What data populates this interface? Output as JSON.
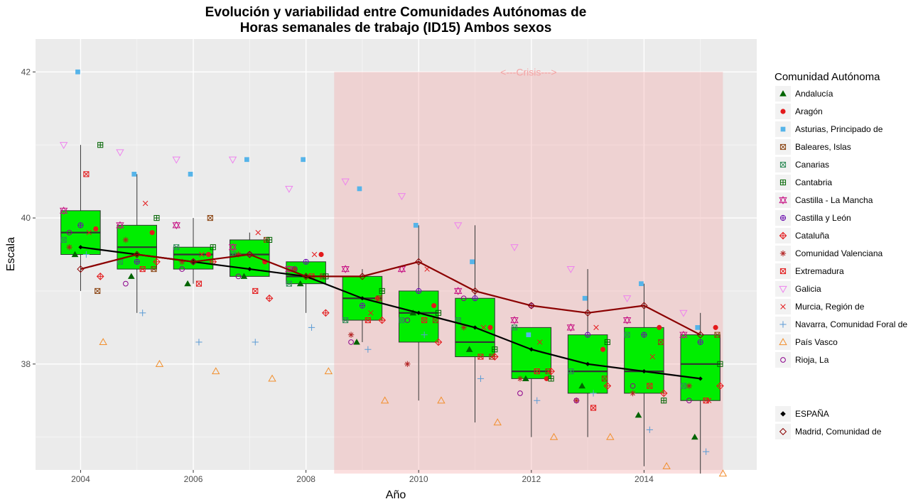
{
  "chart_data": {
    "type": "box",
    "title_line1": "Evolución y variabilidad entre Comunidades Autónomas de",
    "title_line2": "Horas semanales de trabajo (ID15) Ambos sexos",
    "xlabel": "Año",
    "ylabel": "Escala",
    "xlim": [
      2003.2,
      2016.0
    ],
    "ylim": [
      36.55,
      42.45
    ],
    "x_ticks": [
      2004,
      2006,
      2008,
      2010,
      2012,
      2014
    ],
    "x_tick_labels": [
      "2004",
      "2006",
      "2008",
      "2010",
      "2012",
      "2014"
    ],
    "y_ticks": [
      38,
      40,
      42
    ],
    "y_tick_labels": [
      "38",
      "40",
      "42"
    ],
    "grid": true,
    "crisis": {
      "label": "<---Crisis--->",
      "x_start": 2008.5,
      "x_end": 2015.4,
      "y_low": 36.5,
      "y_high": 42.0,
      "color": "#f4a3a3"
    },
    "box_color": "#00ee00",
    "boxes": [
      {
        "year": 2004,
        "min": 39.0,
        "q1": 39.5,
        "median": 39.8,
        "q3": 40.1,
        "max": 41.0
      },
      {
        "year": 2005,
        "min": 38.7,
        "q1": 39.3,
        "median": 39.6,
        "q3": 39.9,
        "max": 40.6
      },
      {
        "year": 2006,
        "min": 39.1,
        "q1": 39.3,
        "median": 39.5,
        "q3": 39.6,
        "max": 40.0
      },
      {
        "year": 2007,
        "min": 39.2,
        "q1": 39.2,
        "median": 39.5,
        "q3": 39.7,
        "max": 39.8
      },
      {
        "year": 2008,
        "min": 38.7,
        "q1": 39.1,
        "median": 39.2,
        "q3": 39.4,
        "max": 39.4
      },
      {
        "year": 2009,
        "min": 38.3,
        "q1": 38.6,
        "median": 38.9,
        "q3": 39.2,
        "max": 39.3
      },
      {
        "year": 2010,
        "min": 37.5,
        "q1": 38.3,
        "median": 38.7,
        "q3": 39.0,
        "max": 39.9
      },
      {
        "year": 2011,
        "min": 37.2,
        "q1": 38.1,
        "median": 38.3,
        "q3": 38.9,
        "max": 39.9
      },
      {
        "year": 2012,
        "min": 37.0,
        "q1": 37.8,
        "median": 37.9,
        "q3": 38.5,
        "max": 38.5
      },
      {
        "year": 2013,
        "min": 37.0,
        "q1": 37.6,
        "median": 37.9,
        "q3": 38.4,
        "max": 39.3
      },
      {
        "year": 2014,
        "min": 36.6,
        "q1": 37.6,
        "median": 37.9,
        "q3": 38.5,
        "max": 39.1
      },
      {
        "year": 2015,
        "min": 36.5,
        "q1": 37.5,
        "median": 38.0,
        "q3": 38.4,
        "max": 38.7
      }
    ],
    "lines": [
      {
        "name": "ESPAÑA",
        "color": "#000000",
        "x": [
          2004,
          2005,
          2006,
          2007,
          2008,
          2009,
          2010,
          2011,
          2012,
          2013,
          2014,
          2015
        ],
        "y": [
          39.6,
          39.5,
          39.4,
          39.3,
          39.2,
          38.9,
          38.7,
          38.5,
          38.2,
          38.0,
          37.9,
          37.8
        ]
      },
      {
        "name": "Madrid, Comunidad de",
        "color": "#8b0000",
        "x": [
          2004,
          2005,
          2006,
          2007,
          2008,
          2009,
          2010,
          2011,
          2012,
          2013,
          2014,
          2015
        ],
        "y": [
          39.3,
          39.5,
          39.4,
          39.5,
          39.2,
          39.2,
          39.4,
          39.0,
          38.8,
          38.7,
          38.8,
          38.4
        ]
      }
    ],
    "series": [
      {
        "name": "Andalucía",
        "shape": "triangle-filled",
        "color": "#006400",
        "offset": -0.1,
        "values": [
          39.5,
          39.2,
          39.1,
          39.2,
          39.1,
          38.3,
          38.7,
          38.2,
          37.8,
          37.7,
          37.3,
          37.0
        ]
      },
      {
        "name": "Aragón",
        "shape": "circle-filled",
        "color": "#e31a1c",
        "offset": 0.27,
        "values": [
          39.85,
          39.8,
          39.5,
          39.4,
          39.5,
          38.9,
          38.8,
          38.5,
          37.8,
          38.2,
          38.5,
          38.5
        ]
      },
      {
        "name": "Asturias, Principado de",
        "shape": "square-filled",
        "color": "#56b4e9",
        "offset": -0.05,
        "values": [
          42.0,
          40.6,
          40.6,
          40.8,
          40.8,
          40.4,
          39.9,
          39.4,
          38.4,
          38.9,
          39.1,
          38.5
        ]
      },
      {
        "name": "Baleares, Islas",
        "shape": "square-x",
        "color": "#8b4513",
        "offset": 0.3,
        "values": [
          39.0,
          39.3,
          40.0,
          39.7,
          39.2,
          38.9,
          38.6,
          38.1,
          37.9,
          37.8,
          38.3,
          38.4
        ]
      },
      {
        "name": "Canarias",
        "shape": "square-x",
        "color": "#2e8b57",
        "offset": -0.3,
        "values": [
          39.7,
          39.4,
          39.6,
          39.5,
          39.1,
          38.6,
          38.6,
          38.6,
          38.5,
          37.9,
          38.4,
          37.7
        ]
      },
      {
        "name": "Cantabria",
        "shape": "square-plus",
        "color": "#006400",
        "offset": 0.35,
        "values": [
          41.0,
          40.0,
          39.6,
          39.7,
          39.2,
          39.0,
          38.7,
          38.2,
          37.8,
          38.3,
          37.5,
          38.0
        ]
      },
      {
        "name": "Castilla - La Mancha",
        "shape": "star-david",
        "color": "#c71585",
        "offset": -0.3,
        "values": [
          40.1,
          39.9,
          39.9,
          39.6,
          39.3,
          39.3,
          39.3,
          39.0,
          38.6,
          38.5,
          38.6,
          38.4
        ]
      },
      {
        "name": "Castilla y León",
        "shape": "circle-plus",
        "color": "#6a0dad",
        "offset": 0.0,
        "values": [
          39.9,
          39.4,
          39.4,
          39.5,
          39.4,
          38.8,
          39.0,
          38.9,
          38.8,
          38.4,
          38.4,
          38.3
        ]
      },
      {
        "name": "Cataluña",
        "shape": "diamond-plus",
        "color": "#e31a1c",
        "offset": 0.35,
        "values": [
          39.2,
          39.4,
          39.4,
          38.9,
          38.7,
          38.6,
          38.3,
          38.1,
          37.9,
          37.7,
          37.6,
          37.7
        ]
      },
      {
        "name": "Comunidad Valenciana",
        "shape": "asterisk",
        "color": "#b22222",
        "offset": -0.2,
        "values": [
          39.6,
          39.7,
          39.4,
          39.5,
          39.3,
          38.4,
          38.0,
          38.5,
          37.8,
          37.5,
          37.6,
          37.7
        ]
      },
      {
        "name": "Extremadura",
        "shape": "square-x",
        "color": "#e31a1c",
        "offset": 0.1,
        "values": [
          40.6,
          39.3,
          39.1,
          39.0,
          39.2,
          38.6,
          38.6,
          38.1,
          37.9,
          37.4,
          37.7,
          37.5
        ]
      },
      {
        "name": "Galicia",
        "shape": "triangle-down",
        "color": "#ee82ee",
        "offset": -0.3,
        "values": [
          41.0,
          40.9,
          40.8,
          40.8,
          40.4,
          40.5,
          40.3,
          39.9,
          39.6,
          39.3,
          38.9,
          38.7
        ]
      },
      {
        "name": "Murcia, Región de",
        "shape": "x",
        "color": "#e31a1c",
        "offset": 0.15,
        "values": [
          39.8,
          40.2,
          39.5,
          39.8,
          39.5,
          38.7,
          39.3,
          38.5,
          38.3,
          38.5,
          38.1,
          37.5
        ]
      },
      {
        "name": "Navarra, Comunidad Foral de",
        "shape": "plus",
        "color": "#5b9bd5",
        "offset": 0.1,
        "values": [
          39.5,
          38.7,
          38.3,
          38.3,
          38.5,
          38.2,
          38.4,
          37.8,
          37.5,
          37.6,
          37.1,
          36.8
        ]
      },
      {
        "name": "País Vasco",
        "shape": "triangle-open",
        "color": "#f28e2b",
        "offset": 0.4,
        "values": [
          38.3,
          38.0,
          37.9,
          37.8,
          37.9,
          37.5,
          37.5,
          37.2,
          37.0,
          37.0,
          36.6,
          36.5
        ]
      },
      {
        "name": "Rioja, La",
        "shape": "circle-open",
        "color": "#8b008b",
        "offset": -0.2,
        "values": [
          39.8,
          39.1,
          39.3,
          39.2,
          39.3,
          38.3,
          38.6,
          38.9,
          37.6,
          37.5,
          37.7,
          37.5
        ]
      }
    ],
    "legend": {
      "title": "Comunidad Autónoma",
      "position": "right",
      "line_entries": [
        {
          "name": "ESPAÑA",
          "shape": "diamond-filled",
          "color": "#000000"
        },
        {
          "name": "Madrid, Comunidad de",
          "shape": "diamond-open",
          "color": "#8b0000"
        }
      ]
    }
  }
}
